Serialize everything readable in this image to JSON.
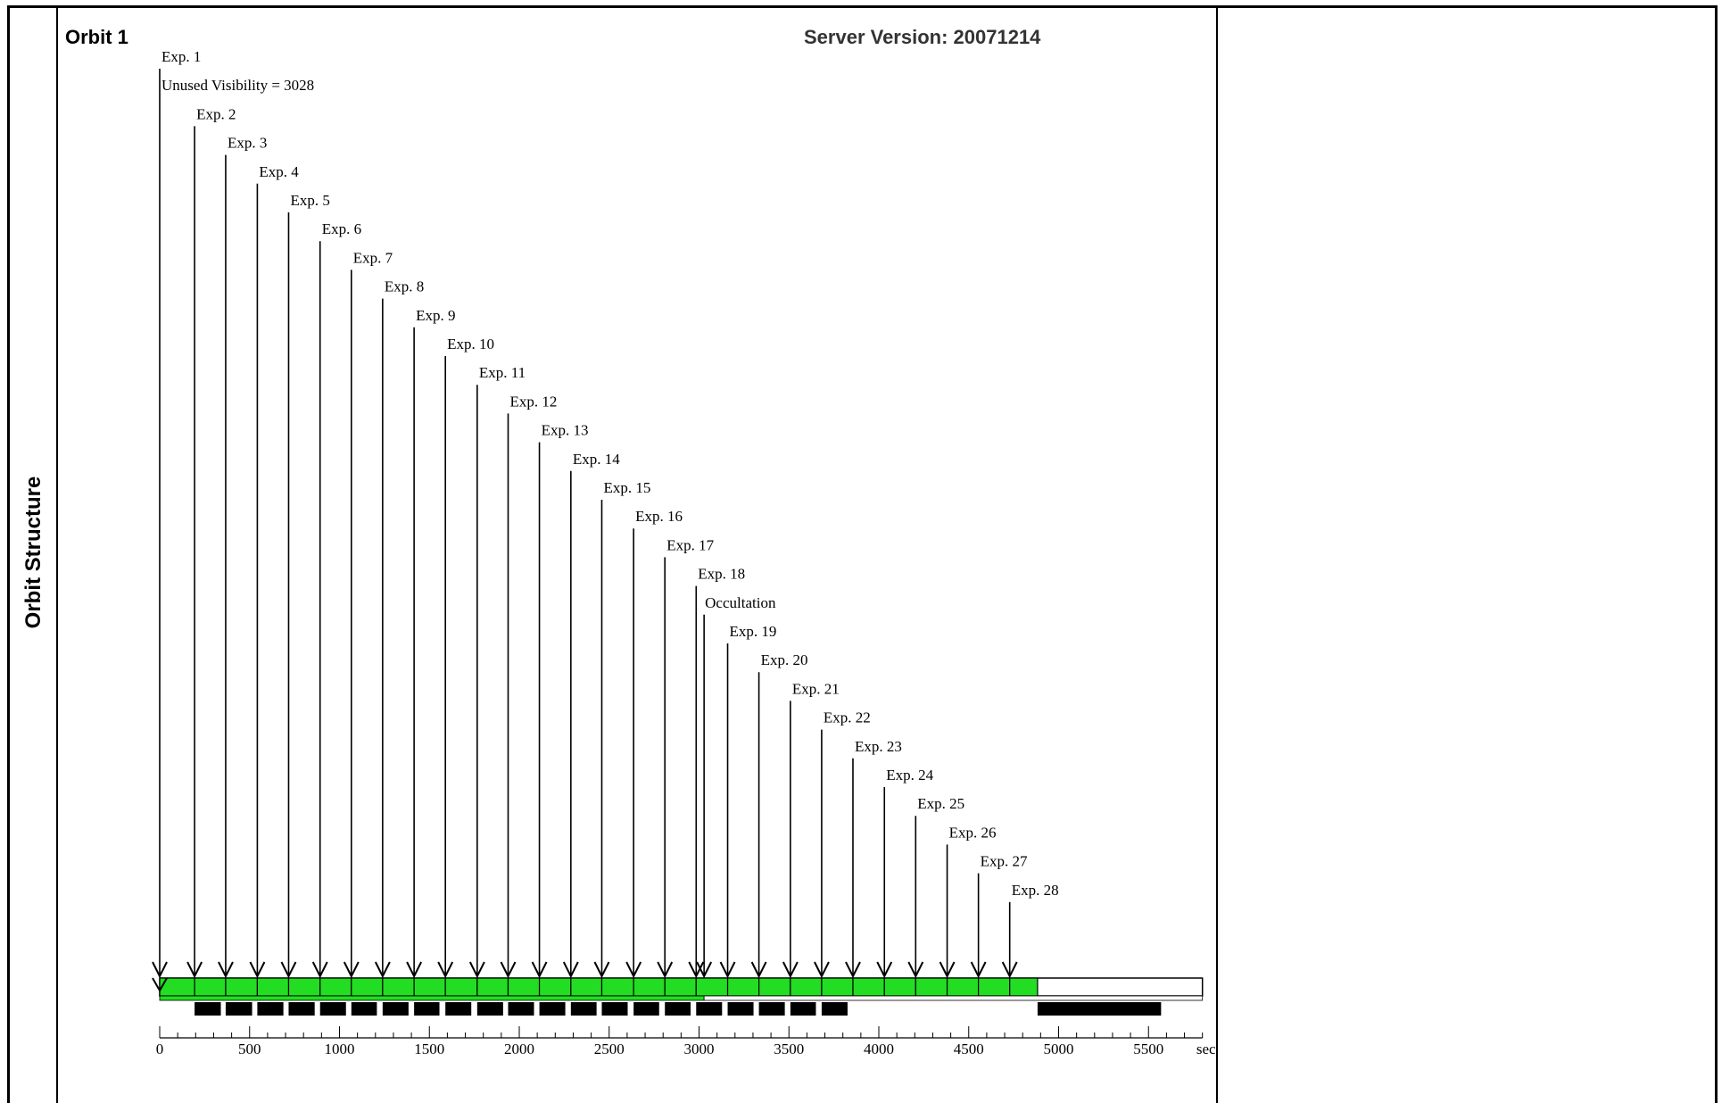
{
  "side_label": "Orbit Structure",
  "orbit_title": "Orbit 1",
  "server_version": "Server Version: 20071214",
  "unused_visibility_label": "Unused Visibility = 3028",
  "occultation_label": "Occultation",
  "axis": {
    "unit": "sec",
    "min": 0,
    "max": 5800,
    "major_ticks": [
      0,
      500,
      1000,
      1500,
      2000,
      2500,
      3000,
      3500,
      4000,
      4500,
      5000,
      5500
    ],
    "minor_step": 100
  },
  "colors": {
    "visibility_fill": "#22dd22",
    "event_bar": "#000000",
    "outline": "#000000"
  },
  "exposures": [
    {
      "label": "Exp. 1",
      "start": 0
    },
    {
      "label": "Exp. 2",
      "start": 194
    },
    {
      "label": "Exp. 3",
      "start": 367
    },
    {
      "label": "Exp. 4",
      "start": 543
    },
    {
      "label": "Exp. 5",
      "start": 717
    },
    {
      "label": "Exp. 6",
      "start": 892
    },
    {
      "label": "Exp. 7",
      "start": 1066
    },
    {
      "label": "Exp. 8",
      "start": 1240
    },
    {
      "label": "Exp. 9",
      "start": 1415
    },
    {
      "label": "Exp. 10",
      "start": 1589
    },
    {
      "label": "Exp. 11",
      "start": 1766
    },
    {
      "label": "Exp. 12",
      "start": 1938
    },
    {
      "label": "Exp. 13",
      "start": 2112
    },
    {
      "label": "Exp. 14",
      "start": 2287
    },
    {
      "label": "Exp. 15",
      "start": 2459
    },
    {
      "label": "Exp. 16",
      "start": 2636
    },
    {
      "label": "Exp. 17",
      "start": 2810
    },
    {
      "label": "Exp. 18",
      "start": 2984
    },
    {
      "label": "Exp. 19",
      "start": 3159
    },
    {
      "label": "Exp. 20",
      "start": 3333
    },
    {
      "label": "Exp. 21",
      "start": 3508
    },
    {
      "label": "Exp. 22",
      "start": 3682
    },
    {
      "label": "Exp. 23",
      "start": 3856
    },
    {
      "label": "Exp. 24",
      "start": 4031
    },
    {
      "label": "Exp. 25",
      "start": 4205
    },
    {
      "label": "Exp. 26",
      "start": 4380
    },
    {
      "label": "Exp. 27",
      "start": 4554
    },
    {
      "label": "Exp. 28",
      "start": 4728
    }
  ],
  "occultation_start": 3028,
  "green_end": 4883,
  "visibility_end": 5800,
  "readout_blocks": [
    [
      194,
      340
    ],
    [
      367,
      514
    ],
    [
      543,
      688
    ],
    [
      717,
      862
    ],
    [
      892,
      1036
    ],
    [
      1066,
      1208
    ],
    [
      1240,
      1384
    ],
    [
      1415,
      1556
    ],
    [
      1589,
      1733
    ],
    [
      1766,
      1910
    ],
    [
      1938,
      2082
    ],
    [
      2112,
      2256
    ],
    [
      2287,
      2430
    ],
    [
      2459,
      2603
    ],
    [
      2636,
      2778
    ],
    [
      2810,
      2953
    ],
    [
      2984,
      3128
    ],
    [
      3159,
      3303
    ],
    [
      3333,
      3477
    ],
    [
      3508,
      3650
    ],
    [
      3682,
      3826
    ],
    [
      4883,
      5570
    ]
  ]
}
